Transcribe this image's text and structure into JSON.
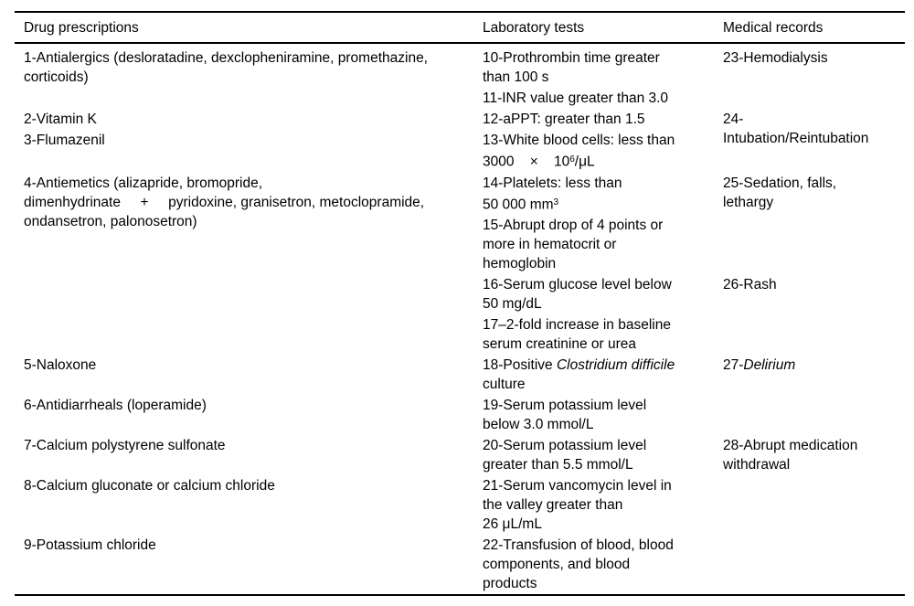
{
  "colors": {
    "text": "#000000",
    "background": "#ffffff",
    "rule": "#000000"
  },
  "table": {
    "columns": [
      {
        "key": "drug",
        "header": "Drug prescriptions"
      },
      {
        "key": "lab",
        "header": "Laboratory tests"
      },
      {
        "key": "med",
        "header": "Medical records"
      }
    ],
    "blocks": [
      {
        "drug": [
          [
            [
              "1-Antialergics (desloratadine, dexclopheniramine, promethazine,"
            ],
            [
              "corticoids)"
            ]
          ]
        ],
        "lab": [
          [
            [
              "10-Prothrombin time greater"
            ],
            [
              "than 100 s"
            ]
          ],
          [
            [
              "11-INR value greater than 3.0"
            ]
          ]
        ],
        "med": [
          [
            [
              "23-Hemodialysis"
            ]
          ]
        ]
      },
      {
        "drug": [
          [
            [
              "2-Vitamin K"
            ]
          ],
          [
            [
              "3-Flumazenil"
            ]
          ]
        ],
        "lab": [
          [
            [
              "12-aPPT: greater than 1.5"
            ]
          ],
          [
            [
              "13-White blood cells: less than"
            ],
            [
              "3000    ×    10",
              {
                "t": "6",
                "style": "sup"
              },
              "/μL"
            ]
          ]
        ],
        "med": [
          [
            [
              "24-"
            ],
            [
              "Intubation/Reintubation"
            ]
          ]
        ]
      },
      {
        "drug": [
          [
            [
              "4-Antiemetics (alizapride, bromopride,"
            ],
            [
              "dimenhydrinate     +     pyridoxine, granisetron, metoclopramide,"
            ],
            [
              "ondansetron, palonosetron)"
            ]
          ]
        ],
        "lab": [
          [
            [
              "14-Platelets: less than"
            ],
            [
              "50 000 mm",
              {
                "t": "3",
                "style": "sup"
              }
            ]
          ],
          [
            [
              "15-Abrupt drop of 4 points or"
            ],
            [
              "more in hematocrit or"
            ],
            [
              "hemoglobin"
            ]
          ]
        ],
        "med": [
          [
            [
              "25-Sedation, falls,"
            ],
            [
              "lethargy"
            ]
          ]
        ]
      },
      {
        "drug": [],
        "lab": [
          [
            [
              "16-Serum glucose level below"
            ],
            [
              "50 mg/dL"
            ]
          ],
          [
            [
              "17–2-fold increase in baseline"
            ],
            [
              "serum creatinine or urea"
            ]
          ]
        ],
        "med": [
          [
            [
              "26-Rash"
            ]
          ]
        ]
      },
      {
        "drug": [
          [
            [
              "5-Naloxone"
            ]
          ]
        ],
        "lab": [
          [
            [
              "18-Positive ",
              {
                "t": "Clostridium difficile",
                "style": "italic"
              }
            ],
            [
              "culture"
            ]
          ]
        ],
        "med": [
          [
            [
              "27-",
              {
                "t": "Delirium",
                "style": "italic"
              }
            ]
          ]
        ]
      },
      {
        "drug": [
          [
            [
              "6-Antidiarrheals (loperamide)"
            ]
          ]
        ],
        "lab": [
          [
            [
              "19-Serum potassium level"
            ],
            [
              "below 3.0 mmol/L"
            ]
          ]
        ],
        "med": []
      },
      {
        "drug": [
          [
            [
              "7-Calcium polystyrene sulfonate"
            ]
          ]
        ],
        "lab": [
          [
            [
              "20-Serum potassium level"
            ],
            [
              "greater than 5.5 mmol/L"
            ]
          ]
        ],
        "med": [
          [
            [
              "28-Abrupt medication"
            ],
            [
              "withdrawal"
            ]
          ]
        ]
      },
      {
        "drug": [
          [
            [
              "8-Calcium gluconate or calcium chloride"
            ]
          ]
        ],
        "lab": [
          [
            [
              "21-Serum vancomycin level in"
            ],
            [
              "the valley greater than"
            ],
            [
              "26 μL/mL"
            ]
          ]
        ],
        "med": []
      },
      {
        "drug": [
          [
            [
              "9-Potassium chloride"
            ]
          ]
        ],
        "lab": [
          [
            [
              "22-Transfusion of blood, blood"
            ],
            [
              "components, and blood"
            ],
            [
              "products"
            ]
          ]
        ],
        "med": []
      }
    ]
  }
}
